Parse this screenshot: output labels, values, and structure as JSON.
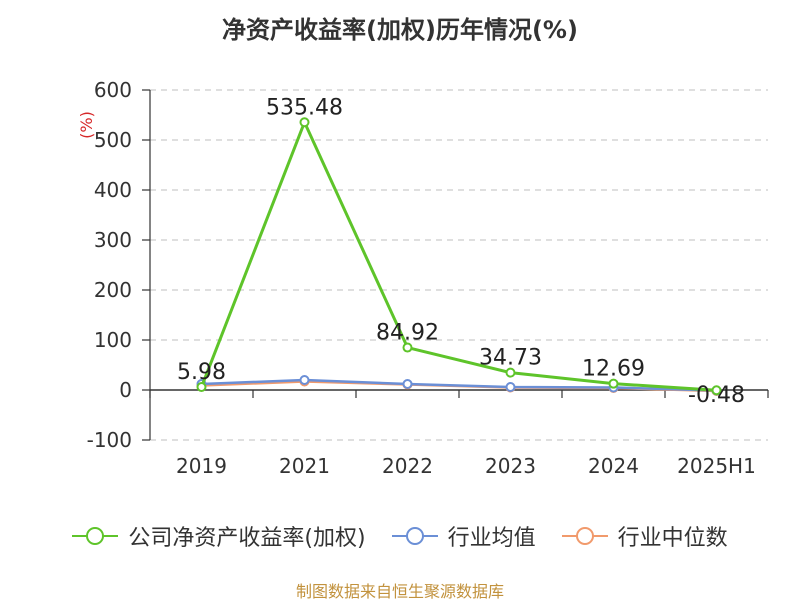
{
  "chart_data": {
    "type": "line",
    "title": "净资产收益率(加权)历年情况(%)",
    "ylabel": "(%)",
    "categories": [
      "2019",
      "2021",
      "2022",
      "2023",
      "2024",
      "2025H1"
    ],
    "ylim": [
      -100,
      600
    ],
    "yticks": [
      "600",
      "500",
      "400",
      "300",
      "200",
      "100",
      "0",
      "-100"
    ],
    "ytick_values": [
      600,
      500,
      400,
      300,
      200,
      100,
      0,
      -100
    ],
    "grid": true,
    "legend_position": "bottom",
    "series": [
      {
        "name": "公司净资产收益率(加权)",
        "color": "#5ec42a",
        "values": [
          5.98,
          535.48,
          84.92,
          34.73,
          12.69,
          -0.48
        ],
        "labels": [
          "5.98",
          "535.48",
          "84.92",
          "34.73",
          "12.69",
          "-0.48"
        ]
      },
      {
        "name": "行业均值",
        "color": "#6b8fd6",
        "values": [
          12,
          20,
          12,
          6,
          5,
          -1
        ]
      },
      {
        "name": "行业中位数",
        "color": "#f19a6c",
        "values": [
          9,
          17,
          11,
          5,
          4,
          -2
        ]
      }
    ]
  },
  "source_text": "制图数据来自恒生聚源数据库"
}
